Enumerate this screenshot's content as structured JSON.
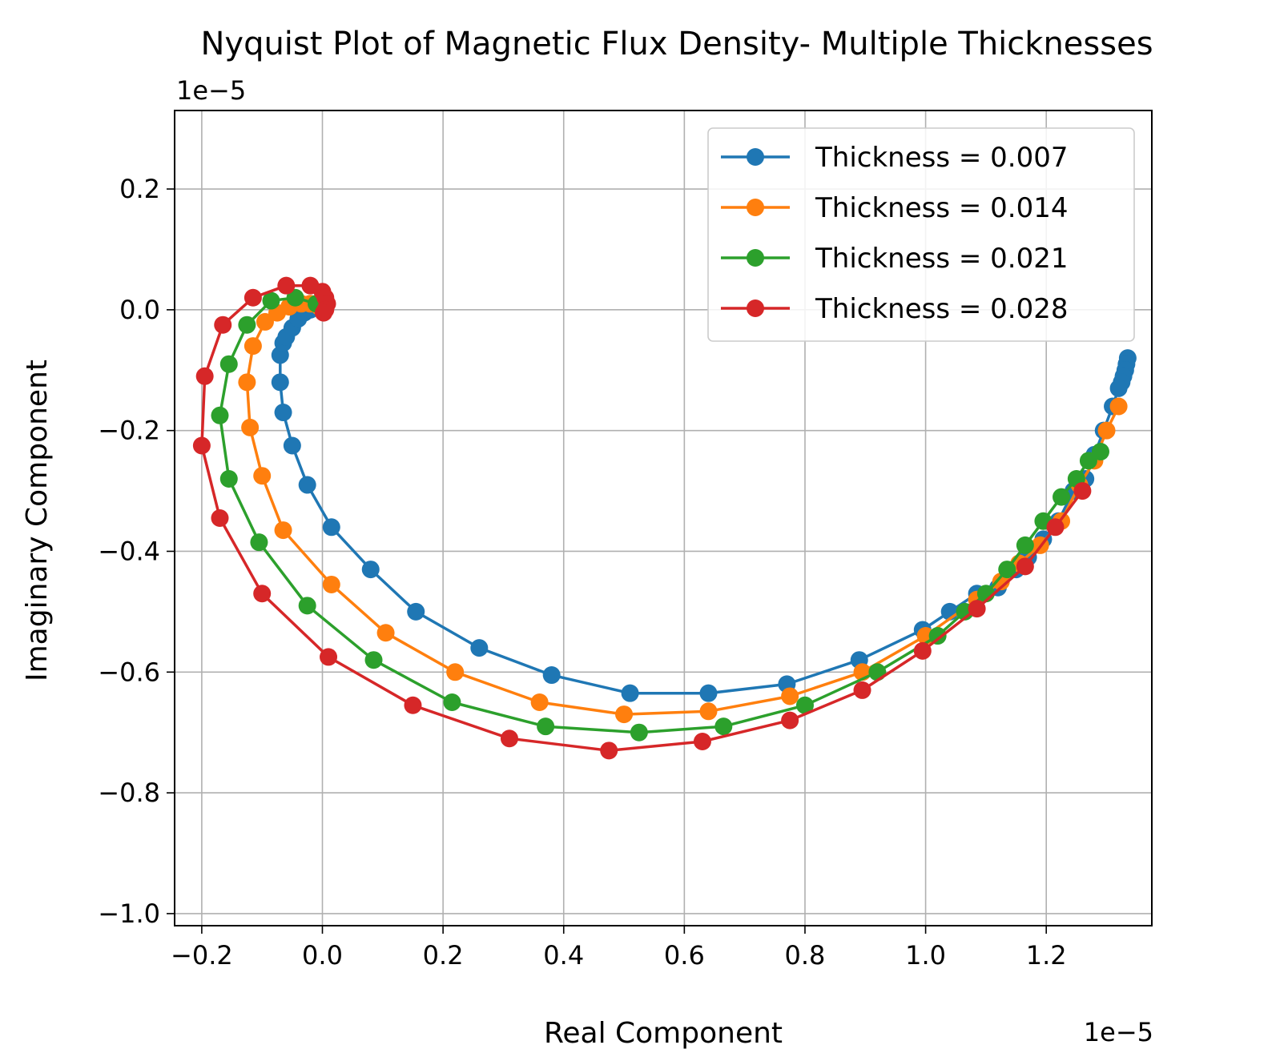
{
  "chart_data": {
    "type": "line",
    "title": "Nyquist Plot of Magnetic Flux Density- Multiple Thicknesses",
    "xlabel": "Real Component",
    "ylabel": "Imaginary Component",
    "x_offset_text": "1e−5",
    "y_offset_text": "1e−5",
    "xlim": [
      -0.245,
      1.375
    ],
    "ylim": [
      -1.02,
      0.33
    ],
    "x_ticks": [
      -0.2,
      0.0,
      0.2,
      0.4,
      0.6,
      0.8,
      1.0,
      1.2
    ],
    "x_tick_labels": [
      "−0.2",
      "0.0",
      "0.2",
      "0.4",
      "0.6",
      "0.8",
      "1.0",
      "1.2"
    ],
    "y_ticks": [
      0.2,
      0.0,
      -0.2,
      -0.4,
      -0.6,
      -0.8,
      -1.0
    ],
    "y_tick_labels": [
      "0.2",
      "0.0",
      "−0.2",
      "−0.4",
      "−0.6",
      "−0.8",
      "−1.0"
    ],
    "grid": true,
    "legend_position": "top-right",
    "series": [
      {
        "name": "Thickness = 0.007",
        "color": "#1f77b4",
        "x": [
          1.335,
          1.333,
          1.331,
          1.328,
          1.325,
          1.32,
          1.31,
          1.295,
          1.28,
          1.265,
          1.245,
          1.22,
          1.195,
          1.17,
          1.15,
          1.12,
          1.085,
          1.04,
          0.995,
          0.89,
          0.77,
          0.64,
          0.51,
          0.38,
          0.26,
          0.155,
          0.08,
          0.015,
          -0.025,
          -0.05,
          -0.065,
          -0.07,
          -0.07,
          -0.065,
          -0.06,
          -0.05,
          -0.04,
          -0.03,
          -0.02,
          -0.01,
          -0.005
        ],
        "y": [
          -0.08,
          -0.09,
          -0.1,
          -0.11,
          -0.12,
          -0.13,
          -0.16,
          -0.2,
          -0.24,
          -0.28,
          -0.3,
          -0.35,
          -0.38,
          -0.41,
          -0.43,
          -0.46,
          -0.47,
          -0.5,
          -0.53,
          -0.58,
          -0.62,
          -0.635,
          -0.635,
          -0.605,
          -0.56,
          -0.5,
          -0.43,
          -0.36,
          -0.29,
          -0.225,
          -0.17,
          -0.12,
          -0.075,
          -0.055,
          -0.045,
          -0.03,
          -0.015,
          -0.005,
          0.0,
          0.005,
          0.005
        ]
      },
      {
        "name": "Thickness = 0.014",
        "color": "#ff7f0e",
        "x": [
          1.32,
          1.3,
          1.28,
          1.255,
          1.225,
          1.19,
          1.155,
          1.125,
          1.085,
          1.0,
          0.895,
          0.775,
          0.64,
          0.5,
          0.36,
          0.22,
          0.105,
          0.015,
          -0.065,
          -0.1,
          -0.12,
          -0.125,
          -0.115,
          -0.095,
          -0.075,
          -0.055,
          -0.035,
          -0.02,
          -0.005,
          0.002
        ],
        "y": [
          -0.16,
          -0.2,
          -0.25,
          -0.29,
          -0.35,
          -0.39,
          -0.42,
          -0.45,
          -0.48,
          -0.54,
          -0.6,
          -0.64,
          -0.665,
          -0.67,
          -0.65,
          -0.6,
          -0.535,
          -0.455,
          -0.365,
          -0.275,
          -0.195,
          -0.12,
          -0.06,
          -0.02,
          -0.005,
          0.005,
          0.01,
          0.01,
          0.005,
          0.0
        ]
      },
      {
        "name": "Thickness = 0.021",
        "color": "#2ca02c",
        "x": [
          1.29,
          1.27,
          1.25,
          1.225,
          1.195,
          1.165,
          1.135,
          1.1,
          1.065,
          1.02,
          0.92,
          0.8,
          0.665,
          0.525,
          0.37,
          0.215,
          0.085,
          -0.025,
          -0.105,
          -0.155,
          -0.17,
          -0.155,
          -0.125,
          -0.085,
          -0.045,
          -0.01,
          0.003
        ],
        "y": [
          -0.235,
          -0.25,
          -0.28,
          -0.31,
          -0.35,
          -0.39,
          -0.43,
          -0.47,
          -0.5,
          -0.54,
          -0.6,
          -0.655,
          -0.69,
          -0.7,
          -0.69,
          -0.65,
          -0.58,
          -0.49,
          -0.385,
          -0.28,
          -0.175,
          -0.09,
          -0.025,
          0.015,
          0.02,
          0.01,
          0.0
        ]
      },
      {
        "name": "Thickness = 0.028",
        "color": "#d62728",
        "x": [
          1.26,
          1.215,
          1.165,
          1.085,
          0.995,
          0.895,
          0.775,
          0.63,
          0.475,
          0.31,
          0.15,
          0.01,
          -0.1,
          -0.17,
          -0.2,
          -0.195,
          -0.165,
          -0.115,
          -0.06,
          -0.02,
          0.0,
          0.005,
          0.008,
          0.005,
          0.002
        ],
        "y": [
          -0.3,
          -0.36,
          -0.425,
          -0.495,
          -0.565,
          -0.63,
          -0.68,
          -0.715,
          -0.73,
          -0.71,
          -0.655,
          -0.575,
          -0.47,
          -0.345,
          -0.225,
          -0.11,
          -0.025,
          0.02,
          0.04,
          0.04,
          0.03,
          0.02,
          0.01,
          0.0,
          -0.005
        ]
      }
    ]
  }
}
